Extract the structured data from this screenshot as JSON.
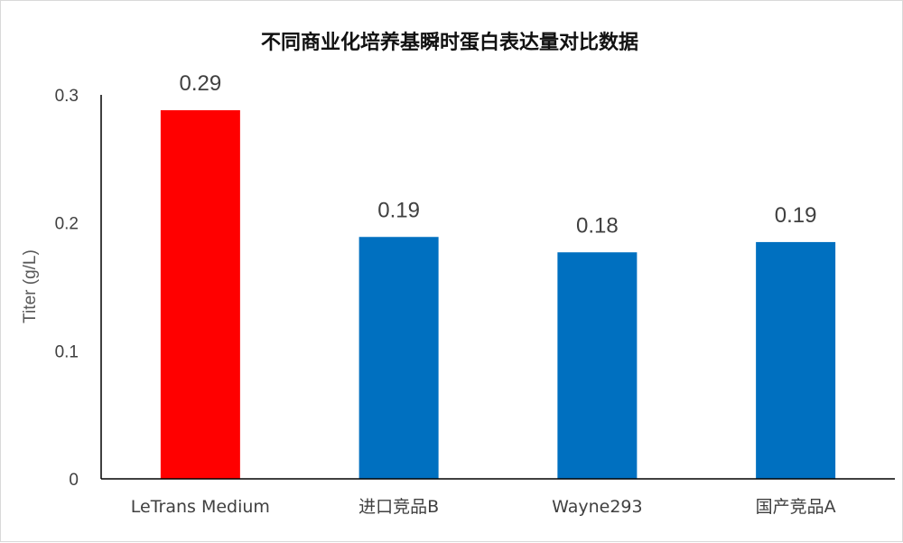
{
  "chart_data": {
    "type": "bar",
    "title": "不同商业化培养基瞬时蛋白表达量对比数据",
    "xlabel": "",
    "ylabel": "Titer (g/L)",
    "ylim": [
      0,
      0.3
    ],
    "yticks": [
      "0",
      "0.1",
      "0.2",
      "0.3"
    ],
    "ytick_values": [
      0,
      0.1,
      0.2,
      0.3
    ],
    "categories": [
      "LeTrans Medium",
      "进口竞品B",
      "Wayne293",
      "国产竞品A"
    ],
    "values": [
      0.288,
      0.189,
      0.177,
      0.185
    ],
    "data_labels": [
      "0.29",
      "0.19",
      "0.18",
      "0.19"
    ],
    "bar_colors": [
      "#ff0000",
      "#0070c0",
      "#0070c0",
      "#0070c0"
    ],
    "grid": false,
    "legend": "none"
  }
}
